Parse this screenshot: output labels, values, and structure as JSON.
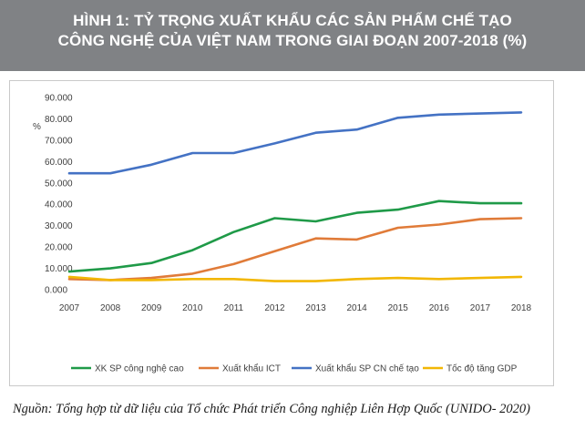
{
  "header": {
    "title_line1": "HÌNH 1: TỶ TRỌNG XUẤT KHẨU CÁC SẢN PHẨM CHẾ TẠO",
    "title_line2": "CÔNG NGHỆ CỦA VIỆT NAM TRONG GIAI ĐOẠN 2007-2018 (%)"
  },
  "source": "Nguồn: Tổng hợp từ dữ liệu của Tổ chức Phát triển Công nghiệp Liên Hợp Quốc (UNIDO- 2020)",
  "colors": {
    "header_bg": "#808285",
    "green": "#1f9a48",
    "orange": "#e07b39",
    "blue": "#4472c4",
    "yellow": "#f2b705"
  },
  "chart_data": {
    "type": "line",
    "title": "HÌNH 1: TỶ TRỌNG XUẤT KHẨU CÁC SẢN PHẨM CHẾ TẠO CÔNG NGHỆ CỦA VIỆT NAM TRONG GIAI ĐOẠN 2007-2018 (%)",
    "ylabel": "%",
    "xlabel": "",
    "ylim": [
      0,
      90
    ],
    "y_ticks": [
      "0.000",
      "10.000",
      "20.000",
      "30.000",
      "40.000",
      "50.000",
      "60.000",
      "70.000",
      "80.000",
      "90.000"
    ],
    "categories": [
      "2007",
      "2008",
      "2009",
      "2010",
      "2011",
      "2012",
      "2013",
      "2014",
      "2015",
      "2016",
      "2017",
      "2018"
    ],
    "grid": false,
    "legend_position": "bottom",
    "series": [
      {
        "name": "XK SP công nghệ cao",
        "color": "#1f9a48",
        "values": [
          8.5,
          10.0,
          12.5,
          18.5,
          27.0,
          33.5,
          32.0,
          36.0,
          37.5,
          41.5,
          40.5,
          40.5
        ]
      },
      {
        "name": "Xuất khẩu ICT",
        "color": "#e07b39",
        "values": [
          5.0,
          4.5,
          5.5,
          7.5,
          12.0,
          18.0,
          24.0,
          23.5,
          29.0,
          30.5,
          33.0,
          33.5
        ]
      },
      {
        "name": "Xuất khẩu SP CN chế tạo",
        "color": "#4472c4",
        "values": [
          54.5,
          54.5,
          58.5,
          64.0,
          64.0,
          68.5,
          73.5,
          75.0,
          80.5,
          82.0,
          82.5,
          83.0
        ]
      },
      {
        "name": "Tốc độ tăng GDP",
        "color": "#f2b705",
        "values": [
          6.0,
          4.5,
          4.5,
          5.0,
          5.0,
          4.0,
          4.0,
          5.0,
          5.5,
          5.0,
          5.5,
          6.0
        ]
      }
    ]
  }
}
